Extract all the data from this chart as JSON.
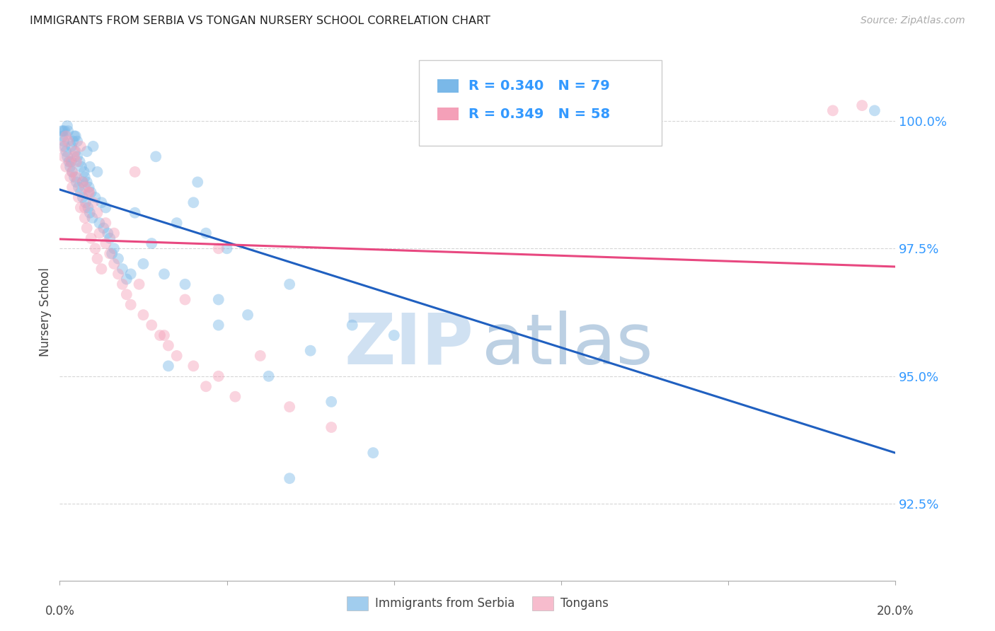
{
  "title": "IMMIGRANTS FROM SERBIA VS TONGAN NURSERY SCHOOL CORRELATION CHART",
  "source": "Source: ZipAtlas.com",
  "ylabel": "Nursery School",
  "y_ticks": [
    92.5,
    95.0,
    97.5,
    100.0
  ],
  "y_tick_labels": [
    "92.5%",
    "95.0%",
    "97.5%",
    "100.0%"
  ],
  "xlim": [
    0.0,
    20.0
  ],
  "ylim": [
    91.0,
    101.5
  ],
  "x_tick_positions": [
    0,
    4,
    8,
    12,
    16,
    20
  ],
  "legend_label1": "Immigrants from Serbia",
  "legend_label2": "Tongans",
  "R1": 0.34,
  "N1": 79,
  "R2": 0.349,
  "N2": 58,
  "blue_color": "#7ab8e8",
  "pink_color": "#f4a0b8",
  "blue_line_color": "#2060c0",
  "pink_line_color": "#e84880",
  "legend_text_color": "#3399ff",
  "watermark_zip_color": "#c8dcf0",
  "watermark_atlas_color": "#a0bcd8",
  "serbia_x": [
    0.05,
    0.08,
    0.1,
    0.12,
    0.15,
    0.18,
    0.2,
    0.22,
    0.25,
    0.28,
    0.3,
    0.32,
    0.35,
    0.38,
    0.4,
    0.42,
    0.45,
    0.48,
    0.5,
    0.52,
    0.55,
    0.58,
    0.6,
    0.62,
    0.65,
    0.68,
    0.7,
    0.72,
    0.75,
    0.78,
    0.8,
    0.85,
    0.9,
    0.95,
    1.0,
    1.05,
    1.1,
    1.15,
    1.2,
    1.3,
    1.4,
    1.5,
    1.6,
    1.8,
    2.0,
    2.2,
    2.5,
    2.8,
    3.0,
    3.2,
    3.5,
    3.8,
    4.0,
    4.5,
    5.0,
    5.5,
    6.0,
    6.5,
    7.0,
    7.5,
    8.0,
    3.3,
    2.3,
    1.7,
    0.42,
    0.55,
    0.35,
    0.28,
    0.18,
    0.12,
    0.65,
    0.72,
    0.38,
    1.25,
    2.6,
    3.8,
    5.5,
    19.5,
    0.08
  ],
  "serbia_y": [
    99.8,
    99.7,
    99.6,
    99.5,
    99.4,
    99.3,
    99.8,
    99.2,
    99.1,
    99.5,
    99.0,
    99.6,
    98.9,
    99.4,
    98.8,
    99.3,
    98.7,
    99.2,
    98.6,
    99.1,
    98.5,
    99.0,
    98.9,
    98.4,
    98.8,
    98.3,
    98.7,
    98.2,
    98.6,
    98.1,
    99.5,
    98.5,
    99.0,
    98.0,
    98.4,
    97.9,
    98.3,
    97.8,
    97.7,
    97.5,
    97.3,
    97.1,
    96.9,
    98.2,
    97.2,
    97.6,
    97.0,
    98.0,
    96.8,
    98.4,
    97.8,
    96.5,
    97.5,
    96.2,
    95.0,
    96.8,
    95.5,
    94.5,
    96.0,
    93.5,
    95.8,
    98.8,
    99.3,
    97.0,
    99.6,
    98.8,
    99.7,
    99.2,
    99.9,
    99.8,
    99.4,
    99.1,
    99.7,
    97.4,
    95.2,
    96.0,
    93.0,
    100.2,
    99.8
  ],
  "tongan_x": [
    0.05,
    0.1,
    0.15,
    0.2,
    0.25,
    0.3,
    0.35,
    0.4,
    0.45,
    0.5,
    0.55,
    0.6,
    0.65,
    0.7,
    0.75,
    0.8,
    0.85,
    0.9,
    0.95,
    1.0,
    1.1,
    1.2,
    1.3,
    1.4,
    1.5,
    1.6,
    1.7,
    1.8,
    2.0,
    2.2,
    2.4,
    2.6,
    2.8,
    3.0,
    3.2,
    3.5,
    3.8,
    4.2,
    4.8,
    5.5,
    3.8,
    6.5,
    2.5,
    1.9,
    0.6,
    0.4,
    0.25,
    0.15,
    0.3,
    0.5,
    0.7,
    0.9,
    1.1,
    1.3,
    18.5,
    19.2,
    0.35,
    0.6
  ],
  "tongan_y": [
    99.5,
    99.3,
    99.1,
    99.6,
    98.9,
    98.7,
    99.4,
    99.2,
    98.5,
    98.3,
    98.8,
    98.1,
    97.9,
    98.6,
    97.7,
    98.4,
    97.5,
    97.3,
    97.8,
    97.1,
    97.6,
    97.4,
    97.2,
    97.0,
    96.8,
    96.6,
    96.4,
    99.0,
    96.2,
    96.0,
    95.8,
    95.6,
    95.4,
    96.5,
    95.2,
    94.8,
    95.0,
    94.6,
    95.4,
    94.4,
    97.5,
    94.0,
    95.8,
    96.8,
    98.3,
    98.9,
    99.2,
    99.7,
    99.0,
    99.5,
    98.6,
    98.2,
    98.0,
    97.8,
    100.2,
    100.3,
    99.3,
    98.7
  ]
}
